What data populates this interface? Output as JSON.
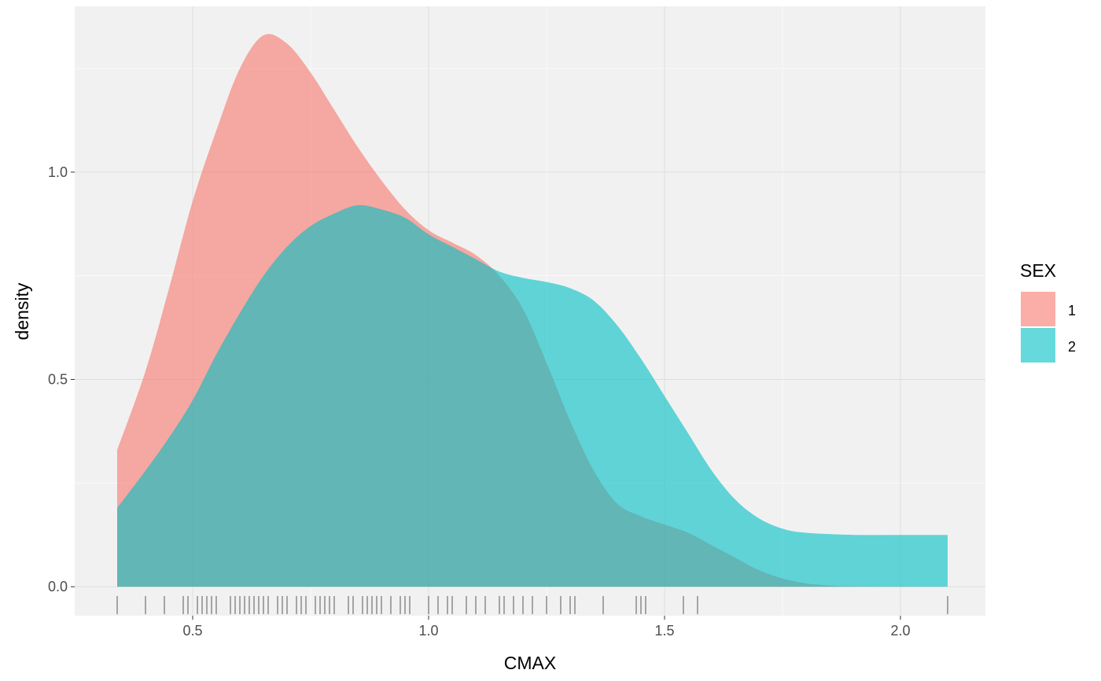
{
  "chart_data": {
    "type": "area",
    "subtype": "density",
    "xlabel": "CMAX",
    "ylabel": "density",
    "xlim": [
      0.25,
      2.18
    ],
    "ylim": [
      -0.07,
      1.4
    ],
    "x_ticks": [
      {
        "value": 0.5,
        "label": "0.5"
      },
      {
        "value": 1.0,
        "label": "1.0"
      },
      {
        "value": 1.5,
        "label": "1.5"
      },
      {
        "value": 2.0,
        "label": "2.0"
      }
    ],
    "y_ticks": [
      {
        "value": 0.0,
        "label": "0.0"
      },
      {
        "value": 0.5,
        "label": "0.5"
      },
      {
        "value": 1.0,
        "label": "1.0"
      }
    ],
    "grid": true,
    "legend": {
      "title": "SEX",
      "position": "right"
    },
    "series": [
      {
        "name": "1",
        "color": "#F8766D",
        "opacity": 0.6,
        "points": [
          [
            0.34,
            0.33
          ],
          [
            0.4,
            0.52
          ],
          [
            0.45,
            0.72
          ],
          [
            0.5,
            0.93
          ],
          [
            0.55,
            1.1
          ],
          [
            0.6,
            1.25
          ],
          [
            0.65,
            1.33
          ],
          [
            0.7,
            1.31
          ],
          [
            0.75,
            1.24
          ],
          [
            0.8,
            1.15
          ],
          [
            0.85,
            1.06
          ],
          [
            0.9,
            0.98
          ],
          [
            0.95,
            0.91
          ],
          [
            1.0,
            0.86
          ],
          [
            1.05,
            0.83
          ],
          [
            1.1,
            0.8
          ],
          [
            1.15,
            0.75
          ],
          [
            1.2,
            0.67
          ],
          [
            1.25,
            0.54
          ],
          [
            1.3,
            0.4
          ],
          [
            1.35,
            0.28
          ],
          [
            1.4,
            0.2
          ],
          [
            1.45,
            0.17
          ],
          [
            1.5,
            0.15
          ],
          [
            1.55,
            0.13
          ],
          [
            1.6,
            0.1
          ],
          [
            1.65,
            0.07
          ],
          [
            1.7,
            0.04
          ],
          [
            1.75,
            0.02
          ],
          [
            1.8,
            0.008
          ],
          [
            1.85,
            0.003
          ],
          [
            1.9,
            0.001
          ],
          [
            2.1,
            0.0
          ]
        ]
      },
      {
        "name": "2",
        "color": "#00BFC4",
        "opacity": 0.6,
        "points": [
          [
            0.34,
            0.19
          ],
          [
            0.4,
            0.28
          ],
          [
            0.45,
            0.36
          ],
          [
            0.5,
            0.45
          ],
          [
            0.55,
            0.56
          ],
          [
            0.6,
            0.66
          ],
          [
            0.65,
            0.75
          ],
          [
            0.7,
            0.82
          ],
          [
            0.75,
            0.87
          ],
          [
            0.8,
            0.9
          ],
          [
            0.85,
            0.92
          ],
          [
            0.9,
            0.91
          ],
          [
            0.95,
            0.89
          ],
          [
            1.0,
            0.85
          ],
          [
            1.05,
            0.82
          ],
          [
            1.1,
            0.79
          ],
          [
            1.15,
            0.76
          ],
          [
            1.2,
            0.745
          ],
          [
            1.25,
            0.735
          ],
          [
            1.3,
            0.72
          ],
          [
            1.35,
            0.69
          ],
          [
            1.4,
            0.63
          ],
          [
            1.45,
            0.55
          ],
          [
            1.5,
            0.46
          ],
          [
            1.55,
            0.37
          ],
          [
            1.6,
            0.28
          ],
          [
            1.65,
            0.21
          ],
          [
            1.7,
            0.165
          ],
          [
            1.75,
            0.14
          ],
          [
            1.8,
            0.13
          ],
          [
            1.9,
            0.125
          ],
          [
            2.0,
            0.125
          ],
          [
            2.1,
            0.125
          ]
        ]
      }
    ],
    "rug": [
      0.34,
      0.4,
      0.44,
      0.48,
      0.49,
      0.51,
      0.52,
      0.53,
      0.54,
      0.55,
      0.58,
      0.59,
      0.6,
      0.61,
      0.62,
      0.63,
      0.64,
      0.65,
      0.66,
      0.68,
      0.69,
      0.7,
      0.72,
      0.73,
      0.74,
      0.76,
      0.77,
      0.78,
      0.79,
      0.8,
      0.83,
      0.84,
      0.86,
      0.87,
      0.88,
      0.89,
      0.9,
      0.92,
      0.94,
      0.95,
      0.96,
      1.0,
      1.02,
      1.04,
      1.05,
      1.08,
      1.1,
      1.12,
      1.15,
      1.16,
      1.18,
      1.2,
      1.22,
      1.25,
      1.28,
      1.3,
      1.31,
      1.37,
      1.44,
      1.45,
      1.46,
      1.54,
      1.57,
      2.1
    ]
  }
}
